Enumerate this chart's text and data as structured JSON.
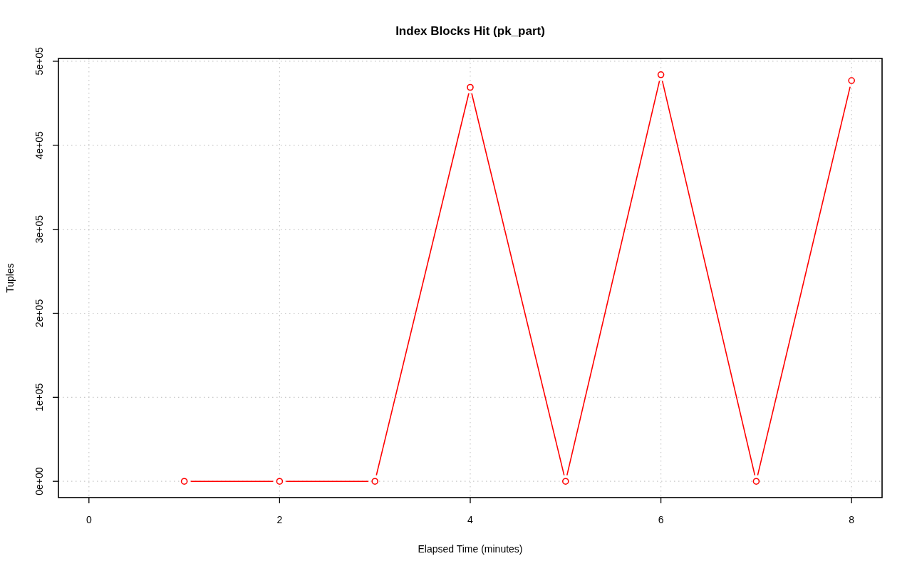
{
  "chart_data": {
    "type": "line",
    "title": "Index Blocks Hit (pk_part)",
    "xlabel": "Elapsed Time (minutes)",
    "ylabel": "Tuples",
    "x": [
      1,
      2,
      3,
      4,
      5,
      6,
      7,
      8
    ],
    "series": [
      {
        "color": "#ff0000",
        "values": [
          0,
          0,
          0,
          469000,
          0,
          484000,
          0,
          477000
        ]
      }
    ],
    "xlim": [
      -0.32,
      8.32
    ],
    "xticks": [
      0,
      2,
      4,
      6,
      8
    ],
    "ylim": [
      -19360,
      503360
    ],
    "yticks": [
      {
        "value": 0,
        "label": "0e+00"
      },
      {
        "value": 100000,
        "label": "1e+05"
      },
      {
        "value": 200000,
        "label": "2e+05"
      },
      {
        "value": 300000,
        "label": "3e+05"
      },
      {
        "value": 400000,
        "label": "4e+05"
      },
      {
        "value": 500000,
        "label": "5e+05"
      }
    ],
    "grid": true,
    "marker": "circle",
    "line_style": "solid"
  }
}
